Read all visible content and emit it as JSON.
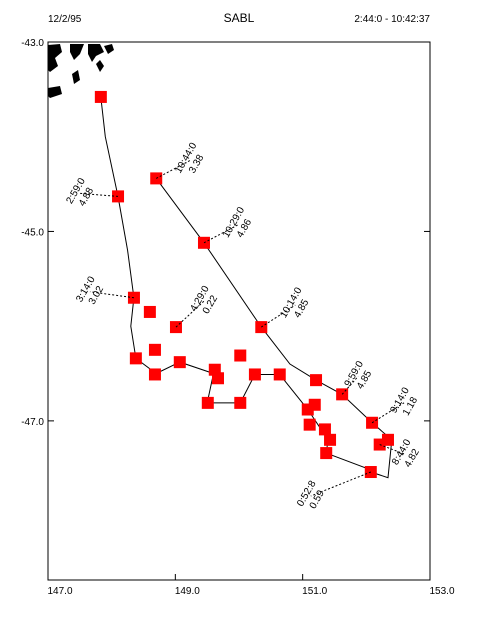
{
  "chart_data": {
    "type": "track",
    "date": "12/2/95",
    "title": "SABL",
    "time_range": "2:44:0 - 10:42:37",
    "xlim": [
      147.0,
      153.0
    ],
    "ylim": [
      -48.68,
      -43.0
    ],
    "xticks": [
      {
        "value": 147,
        "label": "147.0"
      },
      {
        "value": 149,
        "label": "149.0"
      },
      {
        "value": 151,
        "label": "151.0"
      },
      {
        "value": 153,
        "label": "153.0"
      }
    ],
    "yticks": [
      {
        "value": -43,
        "label": "-43.0"
      },
      {
        "value": -45,
        "label": "-45.0"
      },
      {
        "value": -47,
        "label": "-47.0"
      }
    ],
    "track": {
      "color": "#000000",
      "x": [
        147.83,
        147.9,
        148.1,
        148.25,
        148.35,
        148.3,
        148.38,
        148.7,
        149.07,
        149.6,
        149.5,
        150.02,
        150.25,
        150.64,
        151.08,
        151.4,
        151.37,
        152.0,
        152.07,
        152.34,
        152.4,
        152.09,
        151.62,
        151.21,
        150.8,
        150.35,
        149.45,
        148.7
      ],
      "y": [
        -43.58,
        -44.0,
        -44.63,
        -45.2,
        -45.7,
        -46.0,
        -46.34,
        -46.5,
        -46.38,
        -46.5,
        -46.81,
        -46.81,
        -46.51,
        -46.51,
        -46.88,
        -47.2,
        -47.34,
        -47.5,
        -47.54,
        -47.6,
        -47.2,
        -47.02,
        -46.72,
        -46.57,
        -46.4,
        -46.01,
        -45.12,
        -44.44
      ]
    },
    "points": {
      "color": "#ff0000",
      "x": [
        147.83,
        148.7,
        148.1,
        149.45,
        148.35,
        149.01,
        150.35,
        151.62,
        152.09,
        152.21,
        152.07,
        148.38,
        148.68,
        148.68,
        149.07,
        149.62,
        149.67,
        150.02,
        150.25,
        150.64,
        149.51,
        150.02,
        151.08,
        151.21,
        151.19,
        151.11,
        151.35,
        151.43,
        151.37,
        152.34,
        148.6
      ],
      "values": [
        -43.58,
        -44.44,
        -44.63,
        -45.12,
        -45.7,
        -46.01,
        -46.01,
        -46.72,
        -47.02,
        -47.25,
        -47.54,
        -46.34,
        -46.25,
        -46.51,
        -46.38,
        -46.46,
        -46.55,
        -46.31,
        -46.51,
        -46.51,
        -46.81,
        -46.81,
        -46.88,
        -46.57,
        -46.83,
        -47.04,
        -47.09,
        -47.2,
        -47.34,
        -47.2,
        -45.85
      ],
      "point_times": [
        null,
        "10:44:0",
        "2:59:0",
        "10:29:0",
        "3:14:0",
        "4:29:0",
        "10:14:0",
        "9:59:0",
        "9:14:0",
        "8:44:0",
        "0:52:8",
        null,
        null,
        null,
        null,
        null,
        null,
        null,
        null,
        null,
        null,
        null,
        null,
        null,
        null,
        null,
        null,
        null,
        null,
        null,
        null
      ],
      "point_values": [
        null,
        3.38,
        4.88,
        4.86,
        3.02,
        0.22,
        4.85,
        4.85,
        1.18,
        4.82,
        0.59,
        null,
        null,
        null,
        null,
        null,
        null,
        null,
        null,
        null,
        null,
        null,
        null,
        null,
        null,
        null,
        null,
        null,
        null,
        null,
        null
      ]
    }
  }
}
